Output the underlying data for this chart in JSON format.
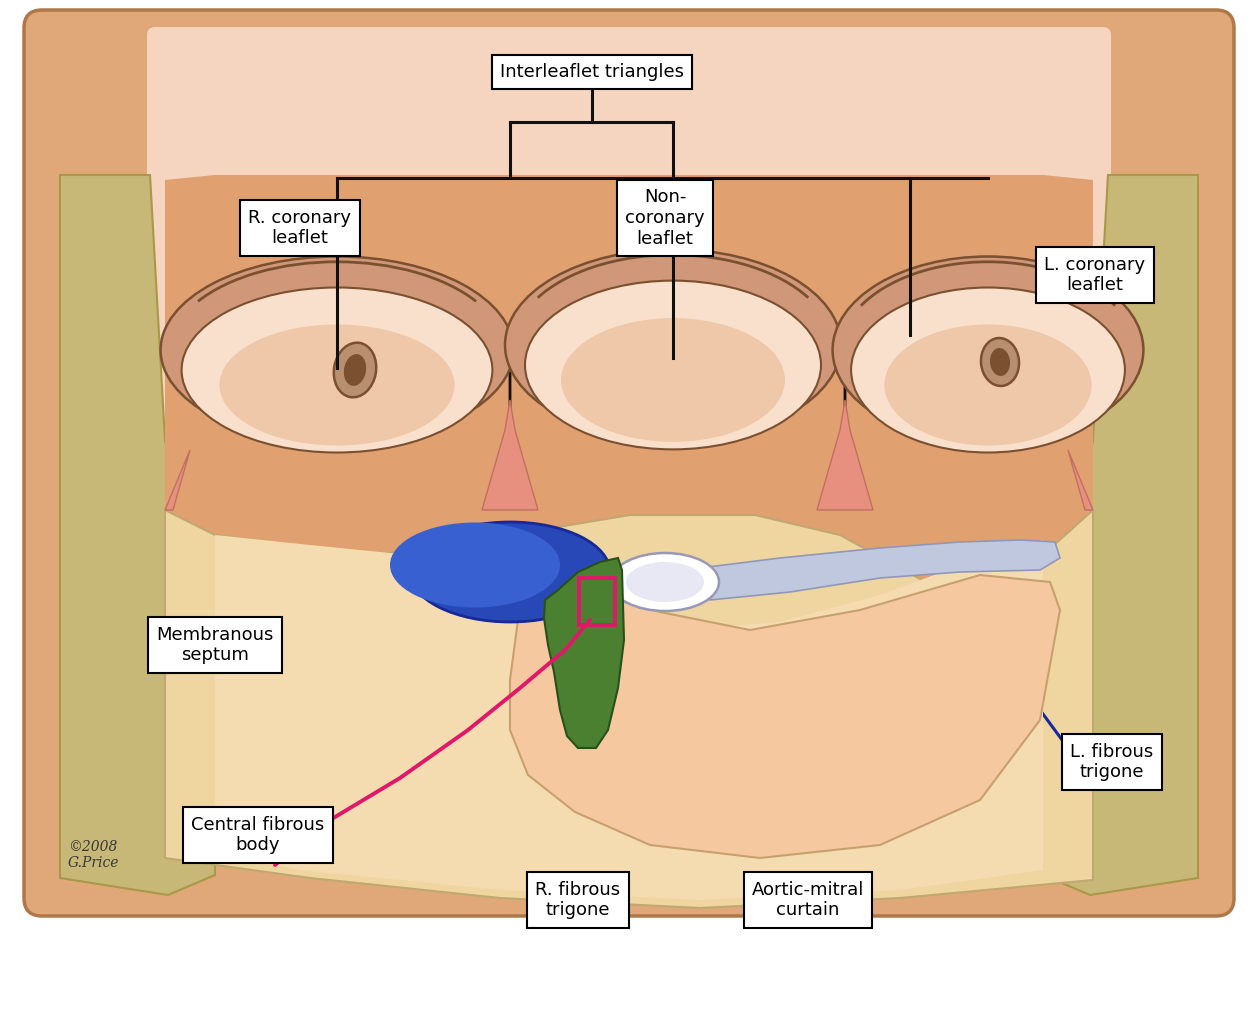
{
  "bg_wall": "#e8a878",
  "bg_inner_top": "#f5d5c0",
  "tan_pillar": "#c8b878",
  "tan_pillar_edge": "#a89848",
  "sinus_dark": "#c89878",
  "leaflet_face": "#f5d8c0",
  "leaflet_shadow": "#e8b8a0",
  "cusp_edge": "#7a5030",
  "interleaflet_fill": "#e8a080",
  "lower_cream": "#f0d8a8",
  "lower_cream_edge": "#c8b080",
  "floor_light": "#f8e8c0",
  "curtain_peach": "#f0c8a8",
  "curtain_edge": "#c8a878",
  "blue_dark": "#2848b8",
  "blue_mid": "#3858c8",
  "white_node": "#e8e8f5",
  "light_blue_tail": "#b8c0e0",
  "green_fill": "#4a8030",
  "green_edge": "#285018",
  "pink_line": "#e0186a",
  "arrow_blue": "#1828a0",
  "black": "#101010",
  "label_fs": 13,
  "copyright": "©2008\nG.Price",
  "labels": {
    "interleaflet": "Interleaflet triangles",
    "r_coronary": "R. coronary\nleaflet",
    "non_coronary": "Non-\ncoronary\nleaflet",
    "l_coronary": "L. coronary\nleaflet",
    "membranous": "Membranous\nseptum",
    "central_fibrous": "Central fibrous\nbody",
    "r_trigone": "R. fibrous\ntrigone",
    "aortic_mitral": "Aortic-mitral\ncurtain",
    "l_trigone": "L. fibrous\ntrigone"
  }
}
